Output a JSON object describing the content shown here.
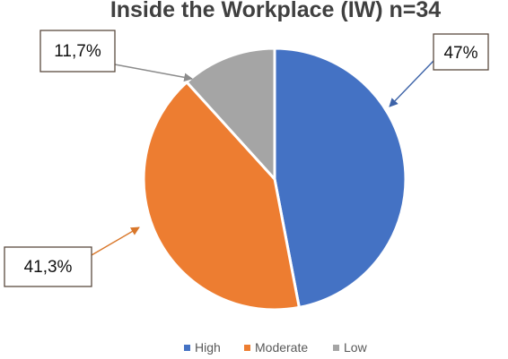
{
  "chart_data": {
    "type": "pie",
    "title": "Inside the Workplace (IW) n=34",
    "slices": [
      {
        "label": "High",
        "value": 47,
        "data_label": "47%",
        "color": "#4472C4"
      },
      {
        "label": "Moderate",
        "value": 41.3,
        "data_label": "41,3%",
        "color": "#ED7D31"
      },
      {
        "label": "Low",
        "value": 11.7,
        "data_label": "11,7%",
        "color": "#A5A5A5"
      }
    ],
    "legend_position": "bottom",
    "start_angle_deg": 0,
    "direction": "clockwise"
  }
}
